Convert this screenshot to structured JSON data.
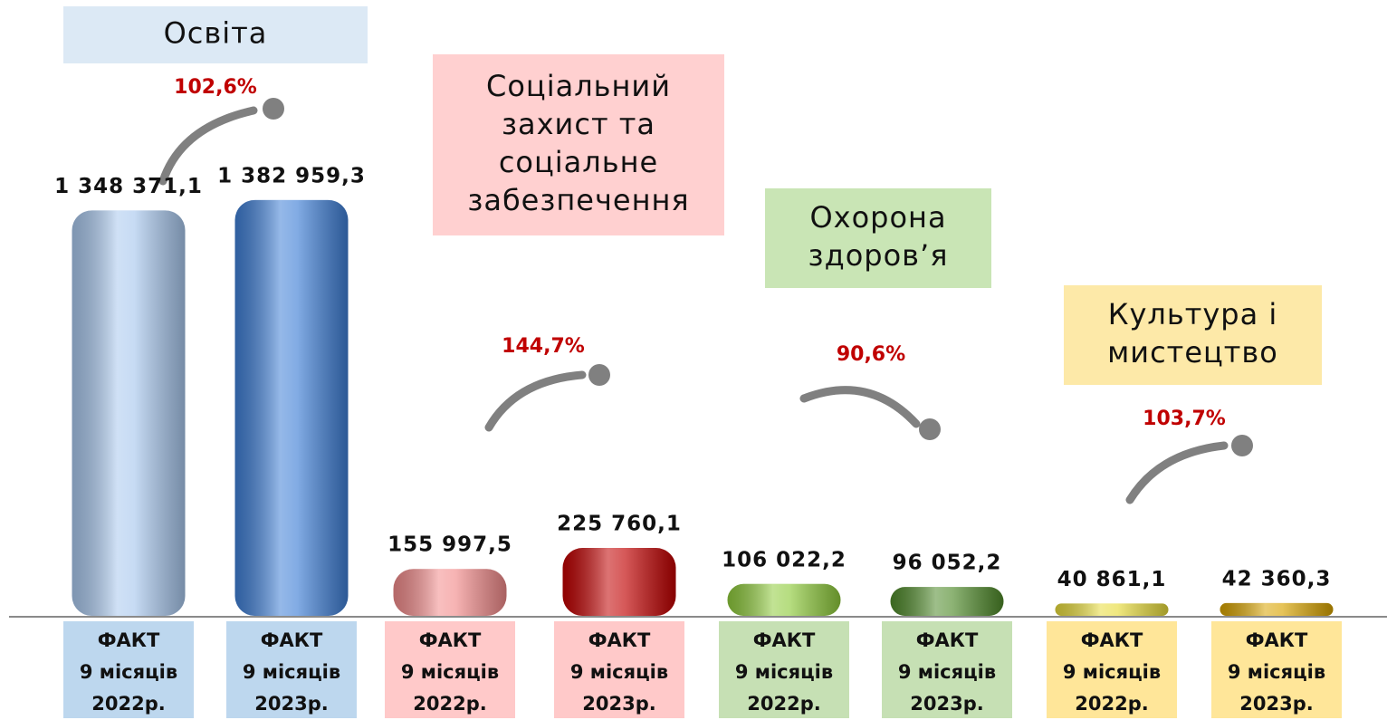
{
  "chart_data": {
    "type": "bar",
    "categories": [
      [
        "Освіта"
      ],
      [
        "Соціальний",
        "захист та",
        "соціальне",
        "забезпечення"
      ],
      [
        "Охорона",
        "здоров’я"
      ],
      [
        "Культура і",
        "мистецтво"
      ]
    ],
    "category_colors": [
      "#dce9f5",
      "#ffd0d0",
      "#c9e5b5",
      "#fde9a8"
    ],
    "label_box_colors": [
      "#bdd7ee",
      "#ffc9c9",
      "#c6e0b4",
      "#ffe699"
    ],
    "changes": [
      102.6,
      144.7,
      90.6,
      103.7
    ],
    "change_labels": [
      "102,6%",
      "144,7%",
      "90,6%",
      "103,7%"
    ],
    "change_color": "#c00000",
    "bar_labels": [
      [
        "ФАКТ",
        "9 місяців",
        "2022р."
      ],
      [
        "ФАКТ",
        "9 місяців",
        "2023р."
      ]
    ],
    "series": [
      {
        "values": [
          1348371.1,
          155997.5,
          106022.2,
          40861.1
        ],
        "value_labels": [
          "1 348 371,1",
          "155 997,5",
          "106 022,2",
          "40 861,1"
        ],
        "colors": [
          "#a9c8ee",
          "#f28b8b",
          "#8fcb3c",
          "#e8dc3c"
        ]
      },
      {
        "values": [
          1382959.3,
          225760.1,
          96052.2,
          42360.3
        ],
        "value_labels": [
          "1 382 959,3",
          "225 760,1",
          "96 052,2",
          "42 360,3"
        ],
        "colors": [
          "#3f7fd6",
          "#c00000",
          "#4f8a2a",
          "#d9a400"
        ]
      }
    ],
    "ylim": [
      0,
      1500000
    ]
  }
}
